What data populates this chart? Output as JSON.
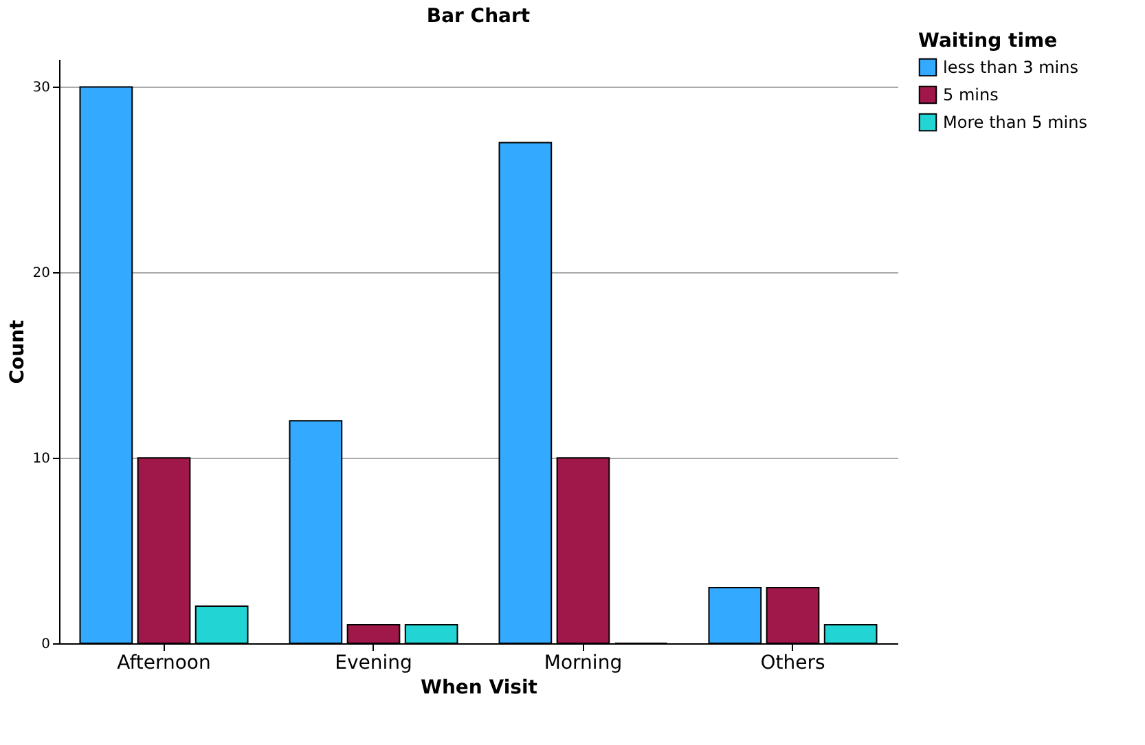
{
  "chart_data": {
    "type": "bar",
    "title": "Bar Chart",
    "xlabel": "When Visit",
    "ylabel": "Count",
    "legend_title": "Waiting time",
    "categories": [
      "Afternoon",
      "Evening",
      "Morning",
      "Others"
    ],
    "series": [
      {
        "name": "less than 3 mins",
        "color": "#33aaff",
        "values": [
          30,
          12,
          27,
          3
        ]
      },
      {
        "name": "5 mins",
        "color": "#a0184a",
        "values": [
          10,
          1,
          10,
          3
        ]
      },
      {
        "name": "More than 5 mins",
        "color": "#22d4d4",
        "values": [
          2,
          1,
          0,
          1
        ]
      }
    ],
    "ylim": [
      0,
      31.5
    ],
    "yticks": [
      0,
      10,
      20,
      30
    ],
    "grid": "y",
    "legend": "top right"
  }
}
